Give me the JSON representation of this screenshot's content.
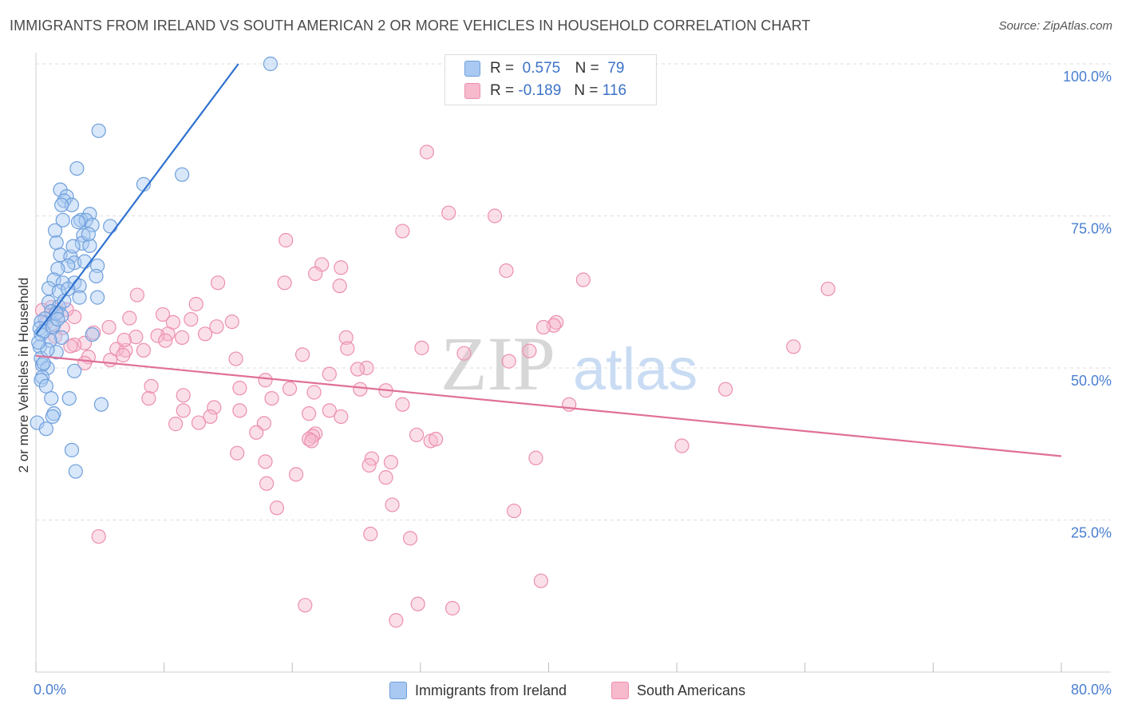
{
  "title": "IMMIGRANTS FROM IRELAND VS SOUTH AMERICAN 2 OR MORE VEHICLES IN HOUSEHOLD CORRELATION CHART",
  "source": "Source: ZipAtlas.com",
  "watermark": {
    "zip": "ZIP",
    "atlas": "atlas"
  },
  "legend": {
    "r_label": "R =",
    "n_label": "N =",
    "series1": {
      "r": "0.575",
      "n": "79",
      "color": "#a9c9f2",
      "border": "#6f9fdc"
    },
    "series2": {
      "r": "-0.189",
      "n": "116",
      "color": "#f7b9cc",
      "border": "#ec8fae"
    }
  },
  "bottom_legend": {
    "series1": "Immigrants from Ireland",
    "series2": "South Americans"
  },
  "colors": {
    "blue_line": "#2f72cf",
    "pink_line": "#e07098",
    "tick_text": "#4a7fd1",
    "grid": "#dddddd"
  },
  "chart_data": {
    "type": "scatter",
    "title": "IMMIGRANTS FROM IRELAND VS SOUTH AMERICAN 2 OR MORE VEHICLES IN HOUSEHOLD CORRELATION CHART",
    "xlabel": "",
    "ylabel": "2 or more Vehicles in Household",
    "xlim": [
      0,
      80
    ],
    "ylim": [
      0,
      100
    ],
    "x_tick_labels": [
      "0.0%",
      "80.0%"
    ],
    "y_ticks": [
      25,
      50,
      75,
      100
    ],
    "y_tick_labels": [
      "25.0%",
      "50.0%",
      "75.0%",
      "100.0%"
    ],
    "series": [
      {
        "name": "Immigrants from Ireland",
        "r": 0.575,
        "n": 79,
        "trend": {
          "x0": 0.0,
          "y0": 55.5,
          "x1": 15.8,
          "y1": 100.0
        },
        "points": [
          [
            18.3,
            100
          ],
          [
            4.9,
            89
          ],
          [
            3.2,
            82.8
          ],
          [
            11.4,
            81.8
          ],
          [
            8.4,
            80.2
          ],
          [
            1.9,
            79.3
          ],
          [
            2.4,
            78.2
          ],
          [
            2.2,
            77.5
          ],
          [
            2.8,
            76.8
          ],
          [
            2.0,
            76.8
          ],
          [
            4.2,
            75.3
          ],
          [
            3.5,
            74.3
          ],
          [
            2.1,
            74.3
          ],
          [
            3.9,
            74.3
          ],
          [
            5.8,
            73.3
          ],
          [
            4.4,
            73.5
          ],
          [
            1.5,
            72.6
          ],
          [
            3.7,
            71.8
          ],
          [
            3.6,
            70.5
          ],
          [
            1.6,
            70.6
          ],
          [
            4.2,
            70.1
          ],
          [
            1.9,
            68.6
          ],
          [
            2.7,
            68.3
          ],
          [
            3.0,
            67.3
          ],
          [
            4.8,
            66.8
          ],
          [
            2.5,
            66.8
          ],
          [
            1.7,
            66.3
          ],
          [
            4.7,
            65.1
          ],
          [
            3.0,
            64.0
          ],
          [
            1.4,
            64.5
          ],
          [
            2.1,
            64.0
          ],
          [
            3.4,
            63.5
          ],
          [
            1.0,
            63.1
          ],
          [
            1.8,
            62.6
          ],
          [
            4.8,
            61.6
          ],
          [
            3.4,
            61.6
          ],
          [
            1.0,
            60.8
          ],
          [
            1.8,
            60.1
          ],
          [
            1.2,
            59.3
          ],
          [
            2.0,
            58.6
          ],
          [
            0.7,
            58.1
          ],
          [
            0.4,
            57.6
          ],
          [
            1.4,
            57.1
          ],
          [
            0.3,
            56.5
          ],
          [
            0.4,
            55.5
          ],
          [
            2.0,
            55.0
          ],
          [
            4.4,
            55.5
          ],
          [
            1.1,
            54.5
          ],
          [
            0.3,
            53.5
          ],
          [
            1.6,
            52.6
          ],
          [
            0.4,
            51.6
          ],
          [
            0.5,
            50.5
          ],
          [
            0.9,
            50.0
          ],
          [
            3.0,
            49.5
          ],
          [
            0.5,
            48.5
          ],
          [
            0.4,
            48.0
          ],
          [
            0.8,
            47.0
          ],
          [
            1.2,
            45.0
          ],
          [
            2.6,
            45.0
          ],
          [
            5.1,
            44.0
          ],
          [
            1.4,
            42.5
          ],
          [
            1.3,
            42.0
          ],
          [
            0.1,
            41.0
          ],
          [
            0.8,
            40.0
          ],
          [
            2.8,
            36.5
          ],
          [
            3.1,
            33.0
          ],
          [
            0.6,
            56.0
          ],
          [
            1.6,
            59.0
          ],
          [
            2.2,
            61.0
          ],
          [
            0.9,
            53.0
          ],
          [
            3.8,
            67.5
          ],
          [
            2.9,
            70.0
          ],
          [
            1.3,
            56.8
          ],
          [
            0.6,
            50.8
          ],
          [
            2.5,
            63.0
          ],
          [
            4.1,
            72.0
          ],
          [
            1.7,
            58.0
          ],
          [
            0.2,
            54.2
          ],
          [
            3.3,
            74.0
          ]
        ]
      },
      {
        "name": "South Americans",
        "r": -0.189,
        "n": 116,
        "trend": {
          "x0": 0.0,
          "y0": 52.0,
          "x1": 80.0,
          "y1": 35.5
        },
        "points": [
          [
            30.5,
            85.5
          ],
          [
            32.2,
            75.5
          ],
          [
            35.8,
            75.0
          ],
          [
            28.6,
            72.5
          ],
          [
            19.5,
            71.0
          ],
          [
            22.3,
            67.0
          ],
          [
            23.8,
            66.5
          ],
          [
            36.7,
            66.0
          ],
          [
            21.8,
            65.5
          ],
          [
            42.7,
            64.5
          ],
          [
            19.4,
            64.0
          ],
          [
            14.2,
            64.0
          ],
          [
            23.7,
            63.5
          ],
          [
            61.8,
            63.0
          ],
          [
            7.9,
            62.0
          ],
          [
            12.5,
            60.5
          ],
          [
            1.2,
            60.0
          ],
          [
            0.5,
            59.5
          ],
          [
            1.6,
            58.9
          ],
          [
            9.9,
            58.8
          ],
          [
            3.0,
            58.4
          ],
          [
            7.3,
            58.2
          ],
          [
            12.1,
            58.0
          ],
          [
            15.3,
            57.6
          ],
          [
            10.7,
            57.5
          ],
          [
            40.6,
            57.5
          ],
          [
            40.4,
            57.0
          ],
          [
            14.1,
            56.8
          ],
          [
            5.7,
            56.7
          ],
          [
            2.1,
            56.6
          ],
          [
            4.5,
            55.8
          ],
          [
            10.3,
            55.6
          ],
          [
            9.5,
            55.3
          ],
          [
            7.8,
            55.1
          ],
          [
            11.4,
            55.0
          ],
          [
            24.2,
            55.0
          ],
          [
            10.1,
            54.5
          ],
          [
            3.8,
            54.1
          ],
          [
            3.0,
            53.8
          ],
          [
            2.7,
            53.6
          ],
          [
            30.1,
            53.3
          ],
          [
            24.3,
            53.2
          ],
          [
            6.3,
            53.1
          ],
          [
            7.0,
            52.9
          ],
          [
            8.4,
            52.9
          ],
          [
            38.5,
            52.8
          ],
          [
            59.1,
            53.5
          ],
          [
            20.8,
            52.2
          ],
          [
            6.8,
            52.1
          ],
          [
            4.1,
            51.8
          ],
          [
            5.8,
            51.3
          ],
          [
            3.8,
            50.8
          ],
          [
            15.6,
            51.5
          ],
          [
            25.8,
            50.0
          ],
          [
            25.1,
            49.8
          ],
          [
            22.9,
            49.0
          ],
          [
            17.9,
            48.0
          ],
          [
            9.0,
            47.0
          ],
          [
            15.9,
            46.7
          ],
          [
            19.8,
            46.6
          ],
          [
            25.3,
            46.5
          ],
          [
            27.3,
            46.3
          ],
          [
            21.7,
            46.0
          ],
          [
            53.8,
            46.5
          ],
          [
            11.5,
            45.5
          ],
          [
            18.4,
            45.0
          ],
          [
            8.8,
            45.0
          ],
          [
            28.6,
            44.0
          ],
          [
            41.6,
            44.0
          ],
          [
            13.9,
            43.5
          ],
          [
            11.5,
            43.0
          ],
          [
            15.9,
            43.0
          ],
          [
            22.9,
            43.0
          ],
          [
            21.3,
            42.5
          ],
          [
            13.6,
            42.0
          ],
          [
            23.8,
            42.0
          ],
          [
            12.7,
            41.0
          ],
          [
            10.9,
            40.8
          ],
          [
            17.8,
            40.9
          ],
          [
            17.2,
            39.4
          ],
          [
            21.8,
            39.2
          ],
          [
            29.7,
            39.0
          ],
          [
            21.6,
            38.8
          ],
          [
            21.3,
            38.3
          ],
          [
            30.8,
            38.0
          ],
          [
            31.2,
            38.3
          ],
          [
            21.5,
            38.0
          ],
          [
            50.4,
            37.2
          ],
          [
            15.7,
            36.0
          ],
          [
            39.0,
            35.2
          ],
          [
            26.2,
            35.1
          ],
          [
            17.9,
            34.6
          ],
          [
            27.7,
            34.5
          ],
          [
            26.0,
            34.0
          ],
          [
            20.3,
            32.5
          ],
          [
            27.3,
            32.0
          ],
          [
            18.0,
            31.0
          ],
          [
            27.8,
            27.5
          ],
          [
            18.8,
            27.0
          ],
          [
            37.3,
            26.5
          ],
          [
            4.9,
            22.3
          ],
          [
            26.1,
            22.7
          ],
          [
            29.2,
            22.0
          ],
          [
            39.4,
            15.0
          ],
          [
            21.0,
            11.0
          ],
          [
            29.8,
            11.2
          ],
          [
            32.5,
            10.5
          ],
          [
            28.1,
            8.5
          ],
          [
            0.8,
            57.4
          ],
          [
            1.5,
            55.2
          ],
          [
            2.4,
            59.6
          ],
          [
            6.9,
            54.6
          ],
          [
            13.2,
            55.6
          ],
          [
            33.4,
            52.4
          ],
          [
            36.9,
            51.1
          ],
          [
            39.6,
            56.7
          ]
        ]
      }
    ]
  }
}
